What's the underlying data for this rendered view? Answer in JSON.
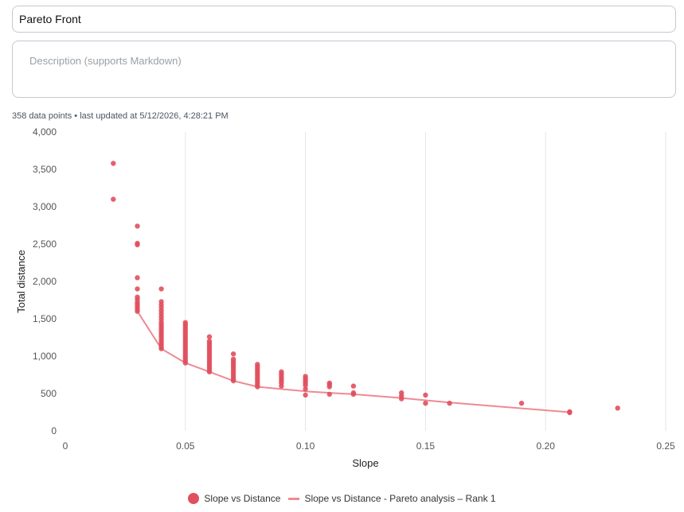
{
  "title_field": {
    "value": "Pareto Front"
  },
  "description_field": {
    "placeholder": "Description (supports Markdown)",
    "value": ""
  },
  "meta": {
    "text": "358 data points • last updated at 5/12/2026, 4:28:21 PM"
  },
  "colors": {
    "scatter": "#e0505d",
    "pareto_line": "#ee8a93",
    "grid": "#e6e6e6"
  },
  "chart_data": {
    "type": "scatter",
    "xlabel": "Slope",
    "ylabel": "Total distance",
    "xlim": [
      0,
      0.25
    ],
    "ylim": [
      0,
      4000
    ],
    "x_ticks": [
      0,
      0.05,
      0.1,
      0.15,
      0.2,
      0.25
    ],
    "x_tick_labels": [
      "0",
      "0.05",
      "0.10",
      "0.15",
      "0.20",
      "0.25"
    ],
    "y_ticks": [
      0,
      500,
      1000,
      1500,
      2000,
      2500,
      3000,
      3500,
      4000
    ],
    "y_tick_labels": [
      "0",
      "500",
      "1,000",
      "1,500",
      "2,000",
      "2,500",
      "3,000",
      "3,500",
      "4,000"
    ],
    "grid": "vertical",
    "legend_position": "bottom-center",
    "series": [
      {
        "name": "Slope vs Distance",
        "kind": "scatter",
        "points": [
          [
            0.02,
            3580
          ],
          [
            0.02,
            3100
          ],
          [
            0.03,
            2740
          ],
          [
            0.03,
            2510
          ],
          [
            0.03,
            2490
          ],
          [
            0.03,
            2050
          ],
          [
            0.03,
            1900
          ],
          [
            0.03,
            1790
          ],
          [
            0.03,
            1760
          ],
          [
            0.03,
            1720
          ],
          [
            0.03,
            1690
          ],
          [
            0.03,
            1660
          ],
          [
            0.03,
            1630
          ],
          [
            0.03,
            1600
          ],
          [
            0.04,
            1900
          ],
          [
            0.04,
            1730
          ],
          [
            0.04,
            1690
          ],
          [
            0.04,
            1650
          ],
          [
            0.04,
            1610
          ],
          [
            0.04,
            1570
          ],
          [
            0.04,
            1530
          ],
          [
            0.04,
            1490
          ],
          [
            0.04,
            1450
          ],
          [
            0.04,
            1420
          ],
          [
            0.04,
            1390
          ],
          [
            0.04,
            1360
          ],
          [
            0.04,
            1330
          ],
          [
            0.04,
            1300
          ],
          [
            0.04,
            1270
          ],
          [
            0.04,
            1240
          ],
          [
            0.04,
            1210
          ],
          [
            0.04,
            1180
          ],
          [
            0.04,
            1150
          ],
          [
            0.04,
            1120
          ],
          [
            0.04,
            1100
          ],
          [
            0.05,
            1450
          ],
          [
            0.05,
            1420
          ],
          [
            0.05,
            1390
          ],
          [
            0.05,
            1360
          ],
          [
            0.05,
            1330
          ],
          [
            0.05,
            1300
          ],
          [
            0.05,
            1270
          ],
          [
            0.05,
            1240
          ],
          [
            0.05,
            1210
          ],
          [
            0.05,
            1180
          ],
          [
            0.05,
            1150
          ],
          [
            0.05,
            1120
          ],
          [
            0.05,
            1090
          ],
          [
            0.05,
            1060
          ],
          [
            0.05,
            1030
          ],
          [
            0.05,
            1000
          ],
          [
            0.05,
            970
          ],
          [
            0.05,
            940
          ],
          [
            0.05,
            910
          ],
          [
            0.06,
            1260
          ],
          [
            0.06,
            1200
          ],
          [
            0.06,
            1170
          ],
          [
            0.06,
            1140
          ],
          [
            0.06,
            1110
          ],
          [
            0.06,
            1080
          ],
          [
            0.06,
            1050
          ],
          [
            0.06,
            1020
          ],
          [
            0.06,
            990
          ],
          [
            0.06,
            960
          ],
          [
            0.06,
            930
          ],
          [
            0.06,
            900
          ],
          [
            0.06,
            870
          ],
          [
            0.06,
            840
          ],
          [
            0.06,
            810
          ],
          [
            0.06,
            790
          ],
          [
            0.07,
            1030
          ],
          [
            0.07,
            960
          ],
          [
            0.07,
            930
          ],
          [
            0.07,
            900
          ],
          [
            0.07,
            870
          ],
          [
            0.07,
            840
          ],
          [
            0.07,
            810
          ],
          [
            0.07,
            780
          ],
          [
            0.07,
            750
          ],
          [
            0.07,
            720
          ],
          [
            0.07,
            690
          ],
          [
            0.07,
            670
          ],
          [
            0.08,
            890
          ],
          [
            0.08,
            860
          ],
          [
            0.08,
            830
          ],
          [
            0.08,
            800
          ],
          [
            0.08,
            770
          ],
          [
            0.08,
            740
          ],
          [
            0.08,
            710
          ],
          [
            0.08,
            680
          ],
          [
            0.08,
            650
          ],
          [
            0.08,
            620
          ],
          [
            0.08,
            590
          ],
          [
            0.09,
            790
          ],
          [
            0.09,
            760
          ],
          [
            0.09,
            730
          ],
          [
            0.09,
            700
          ],
          [
            0.09,
            670
          ],
          [
            0.09,
            640
          ],
          [
            0.09,
            600
          ],
          [
            0.1,
            730
          ],
          [
            0.1,
            700
          ],
          [
            0.1,
            670
          ],
          [
            0.1,
            640
          ],
          [
            0.1,
            610
          ],
          [
            0.1,
            560
          ],
          [
            0.1,
            480
          ],
          [
            0.11,
            640
          ],
          [
            0.11,
            620
          ],
          [
            0.11,
            590
          ],
          [
            0.11,
            490
          ],
          [
            0.12,
            600
          ],
          [
            0.12,
            510
          ],
          [
            0.12,
            490
          ],
          [
            0.14,
            510
          ],
          [
            0.14,
            470
          ],
          [
            0.14,
            430
          ],
          [
            0.15,
            480
          ],
          [
            0.15,
            370
          ],
          [
            0.16,
            370
          ],
          [
            0.19,
            370
          ],
          [
            0.21,
            255
          ],
          [
            0.21,
            245
          ],
          [
            0.23,
            305
          ]
        ]
      },
      {
        "name": "Slope vs Distance - Pareto analysis – Rank 1",
        "kind": "line",
        "points": [
          [
            0.03,
            1600
          ],
          [
            0.04,
            1100
          ],
          [
            0.05,
            910
          ],
          [
            0.06,
            790
          ],
          [
            0.07,
            670
          ],
          [
            0.08,
            590
          ],
          [
            0.09,
            560
          ],
          [
            0.1,
            530
          ],
          [
            0.11,
            510
          ],
          [
            0.12,
            490
          ],
          [
            0.14,
            440
          ],
          [
            0.15,
            410
          ],
          [
            0.16,
            380
          ],
          [
            0.21,
            250
          ]
        ]
      }
    ]
  }
}
